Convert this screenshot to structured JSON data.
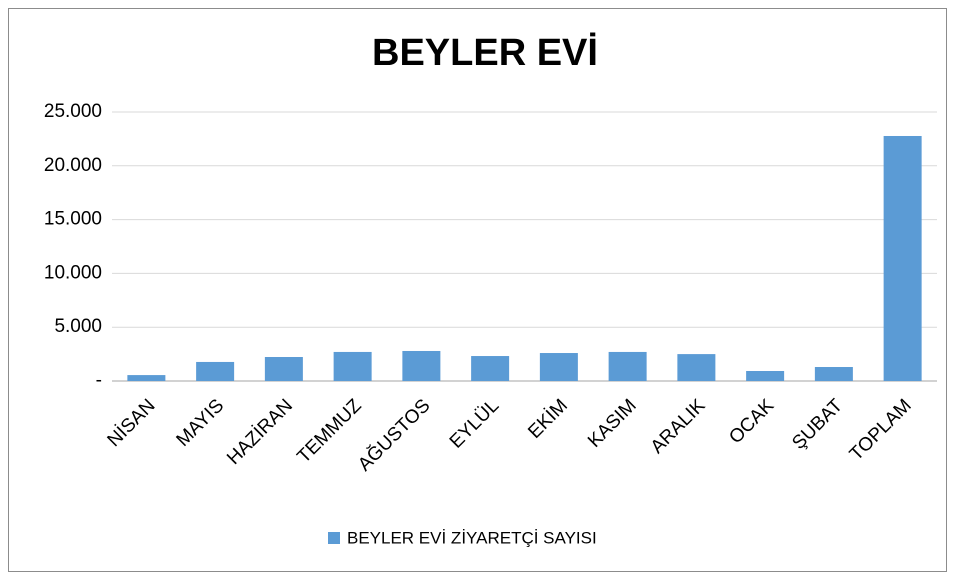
{
  "chart_data": {
    "type": "bar",
    "title": "BEYLER EVİ",
    "categories": [
      "NİSAN",
      "MAYIS",
      "HAZİRAN",
      "TEMMUZ",
      "AĞUSTOS",
      "EYLÜL",
      "EKİM",
      "KASIM",
      "ARALIK",
      "OCAK",
      "ŞUBAT",
      "TOPLAM"
    ],
    "series": [
      {
        "name": "BEYLER EVİ ZİYARETÇİ SAYISI",
        "color": "#5b9bd5",
        "values": [
          550,
          1770,
          2230,
          2700,
          2790,
          2320,
          2600,
          2700,
          2500,
          930,
          1300,
          22770
        ]
      }
    ],
    "ylim": [
      0,
      25000
    ],
    "yticks": [
      {
        "value": 0,
        "label": "-"
      },
      {
        "value": 5000,
        "label": "5.000"
      },
      {
        "value": 10000,
        "label": "10.000"
      },
      {
        "value": 15000,
        "label": "15.000"
      },
      {
        "value": 20000,
        "label": "20.000"
      },
      {
        "value": 25000,
        "label": "25.000"
      }
    ],
    "grid": true,
    "legend": "bottom"
  }
}
